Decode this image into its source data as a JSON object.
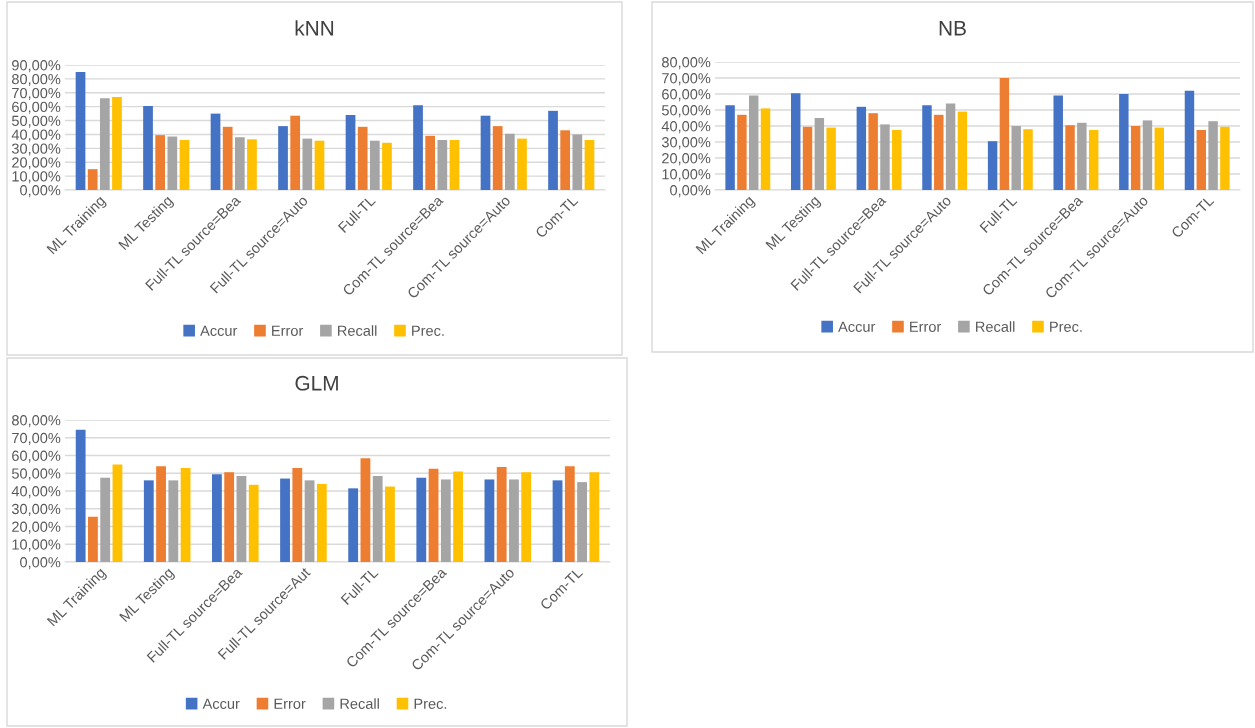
{
  "chart_data": [
    {
      "type": "bar",
      "title": "kNN",
      "categories": [
        "ML Training",
        "ML Testing",
        "Full-TL source=Bea",
        "Full-TL source=Auto",
        "Full-TL",
        "Com-TL source=Bea",
        "Com-TL source=Auto",
        "Com-TL"
      ],
      "series": [
        {
          "name": "Accur",
          "color": "#4472c4",
          "values": [
            85,
            60.5,
            55,
            46,
            54,
            61,
            53.5,
            57
          ]
        },
        {
          "name": "Error",
          "color": "#ed7d31",
          "values": [
            15,
            39.5,
            45.5,
            53.5,
            45.5,
            39,
            46,
            43
          ]
        },
        {
          "name": "Recall",
          "color": "#a5a5a5",
          "values": [
            66,
            38.5,
            38,
            37,
            35.5,
            36,
            40.5,
            40
          ]
        },
        {
          "name": "Prec.",
          "color": "#ffc000",
          "values": [
            67,
            36,
            36.5,
            35.5,
            34,
            36,
            37,
            36
          ]
        }
      ],
      "ylim": [
        0,
        90
      ],
      "yticks": [
        {
          "value": 0,
          "label": "0,00%"
        },
        {
          "value": 10,
          "label": "10,00%"
        },
        {
          "value": 20,
          "label": "20,00%"
        },
        {
          "value": 30,
          "label": "30,00%"
        },
        {
          "value": 40,
          "label": "40,00%"
        },
        {
          "value": 50,
          "label": "50,00%"
        },
        {
          "value": 60,
          "label": "60,00%"
        },
        {
          "value": 70,
          "label": "70,00%"
        },
        {
          "value": 80,
          "label": "80,00%"
        },
        {
          "value": 90,
          "label": "90,00%"
        }
      ],
      "grid": "y",
      "legend": "bottom"
    },
    {
      "type": "bar",
      "title": "NB",
      "categories": [
        "ML Training",
        "ML Testing",
        "Full-TL source=Bea",
        "Full-TL source=Auto",
        "Full-TL",
        "Com-TL source=Bea",
        "Com-TL source=Auto",
        "Com-TL"
      ],
      "series": [
        {
          "name": "Accur",
          "color": "#4472c4",
          "values": [
            53,
            60.5,
            52,
            53,
            30.5,
            59,
            60,
            62
          ]
        },
        {
          "name": "Error",
          "color": "#ed7d31",
          "values": [
            47,
            39.5,
            48,
            47,
            70,
            40.5,
            40,
            37.5
          ]
        },
        {
          "name": "Recall",
          "color": "#a5a5a5",
          "values": [
            59,
            45,
            41,
            54,
            40,
            42,
            43.5,
            43
          ]
        },
        {
          "name": "Prec.",
          "color": "#ffc000",
          "values": [
            51,
            39,
            37.5,
            49,
            38,
            37.5,
            39,
            39.5
          ]
        }
      ],
      "ylim": [
        0,
        80
      ],
      "yticks": [
        {
          "value": 0,
          "label": "0,00%"
        },
        {
          "value": 10,
          "label": "10,00%"
        },
        {
          "value": 20,
          "label": "20,00%"
        },
        {
          "value": 30,
          "label": "30,00%"
        },
        {
          "value": 40,
          "label": "40,00%"
        },
        {
          "value": 50,
          "label": "50,00%"
        },
        {
          "value": 60,
          "label": "60,00%"
        },
        {
          "value": 70,
          "label": "70,00%"
        },
        {
          "value": 80,
          "label": "80,00%"
        }
      ],
      "grid": "y",
      "legend": "bottom"
    },
    {
      "type": "bar",
      "title": "GLM",
      "categories": [
        "ML Training",
        "ML Testing",
        "Full-TL source=Bea",
        "Full-TL source=Aut",
        "Full-TL",
        "Com-TL source=Bea",
        "Com-TL source=Auto",
        "Com-TL"
      ],
      "series": [
        {
          "name": "Accur",
          "color": "#4472c4",
          "values": [
            74.5,
            46,
            49.5,
            47,
            41.5,
            47.5,
            46.5,
            46
          ]
        },
        {
          "name": "Error",
          "color": "#ed7d31",
          "values": [
            25.5,
            54,
            50.5,
            53,
            58.5,
            52.5,
            53.5,
            54
          ]
        },
        {
          "name": "Recall",
          "color": "#a5a5a5",
          "values": [
            47.5,
            46,
            48.5,
            46,
            48.5,
            46.5,
            46.5,
            45
          ]
        },
        {
          "name": "Prec.",
          "color": "#ffc000",
          "values": [
            55,
            53,
            43.5,
            44,
            42.5,
            51,
            50.5,
            50.5
          ]
        }
      ],
      "ylim": [
        0,
        80
      ],
      "yticks": [
        {
          "value": 0,
          "label": "0,00%"
        },
        {
          "value": 10,
          "label": "10,00%"
        },
        {
          "value": 20,
          "label": "20,00%"
        },
        {
          "value": 30,
          "label": "30,00%"
        },
        {
          "value": 40,
          "label": "40,00%"
        },
        {
          "value": 50,
          "label": "50,00%"
        },
        {
          "value": 60,
          "label": "60,00%"
        },
        {
          "value": 70,
          "label": "70,00%"
        },
        {
          "value": 80,
          "label": "80,00%"
        }
      ],
      "grid": "y",
      "legend": "bottom"
    }
  ]
}
